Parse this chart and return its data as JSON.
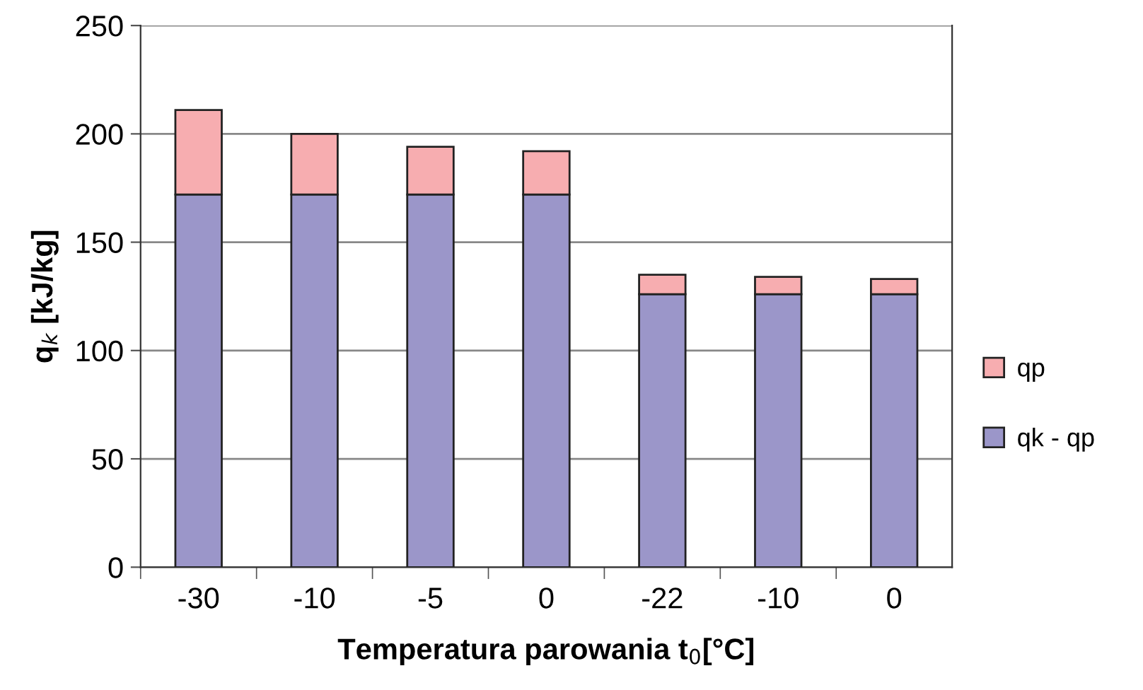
{
  "chart_data": {
    "type": "bar",
    "stacked": true,
    "xlabel": "Temperatura parowania t$_{0}$[°C]",
    "ylabel": "q$_{k}$ [kJ/kg]",
    "categories": [
      "-30",
      "-10",
      "-5",
      "0",
      "-22",
      "-10",
      "0"
    ],
    "series": [
      {
        "name": "qk - qp",
        "color": "#9b96c9",
        "values": [
          172,
          172,
          172,
          172,
          126,
          126,
          126
        ]
      },
      {
        "name": "qp",
        "color": "#f7adb0",
        "values": [
          39,
          28,
          22,
          20,
          9,
          8,
          7
        ]
      }
    ],
    "ylim": [
      0,
      250
    ],
    "yticks": [
      0,
      50,
      100,
      150,
      200,
      250
    ],
    "grid": "y",
    "legend": "right"
  }
}
